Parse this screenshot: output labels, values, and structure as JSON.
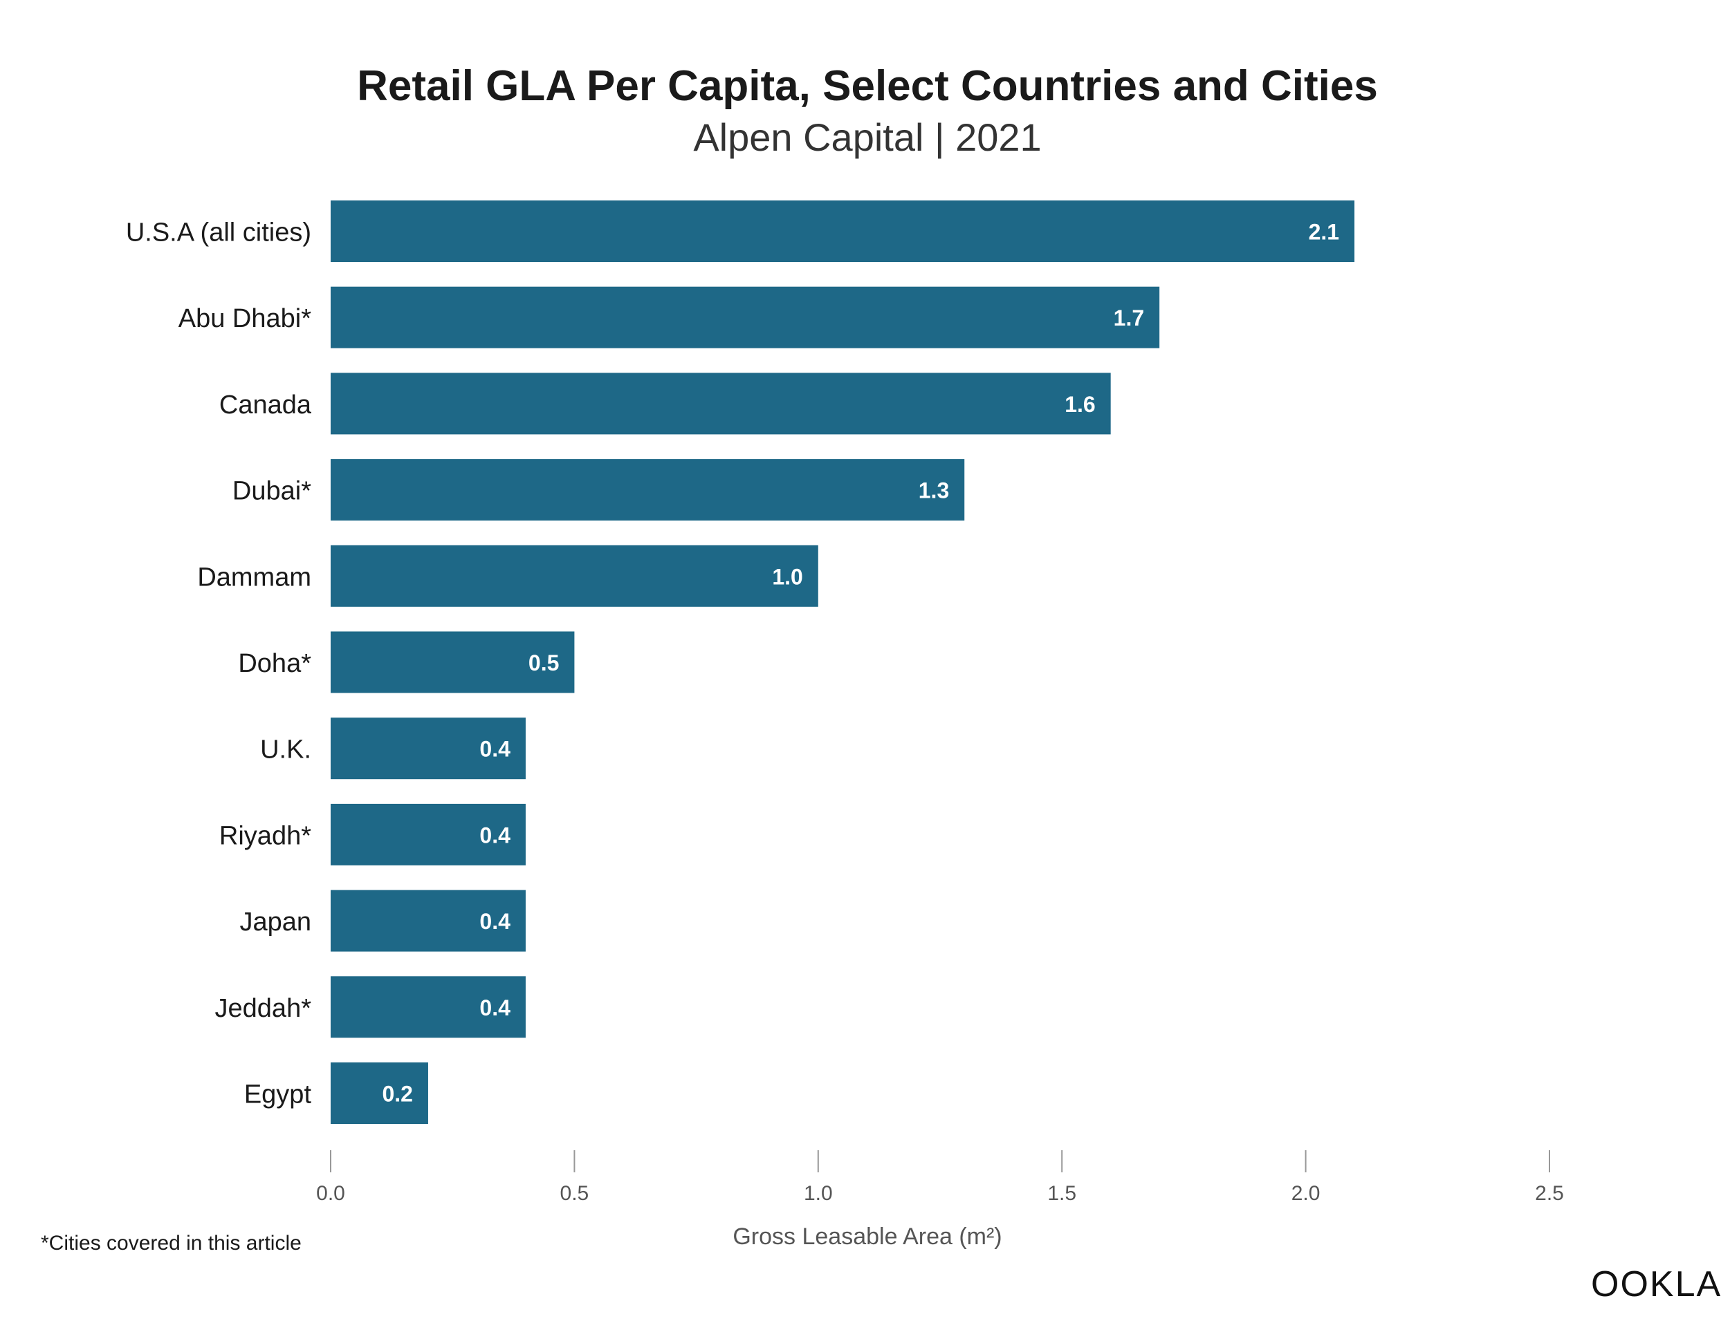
{
  "chart_data": {
    "type": "bar",
    "orientation": "horizontal",
    "title": "Retail GLA Per Capita, Select Countries and Cities",
    "subtitle": "Alpen Capital | 2021",
    "categories": [
      "U.S.A (all cities)",
      "Abu Dhabi*",
      "Canada",
      "Dubai*",
      "Dammam",
      "Doha*",
      "U.K.",
      "Riyadh*",
      "Japan",
      "Jeddah*",
      "Egypt"
    ],
    "values": [
      2.1,
      1.7,
      1.6,
      1.3,
      1.0,
      0.5,
      0.4,
      0.4,
      0.4,
      0.4,
      0.2
    ],
    "value_labels": [
      "2.1",
      "1.7",
      "1.6",
      "1.3",
      "1.0",
      "0.5",
      "0.4",
      "0.4",
      "0.4",
      "0.4",
      "0.2"
    ],
    "xlabel": "Gross Leasable Area (m²)",
    "ylabel": "",
    "xlim": [
      0,
      2.5
    ],
    "xticks": [
      "0.0",
      "0.5",
      "1.0",
      "1.5",
      "2.0",
      "2.5"
    ],
    "grid": false,
    "bar_color": "#1e6887"
  },
  "footnote": "*Cities covered in this article",
  "logo": "OOKLA"
}
